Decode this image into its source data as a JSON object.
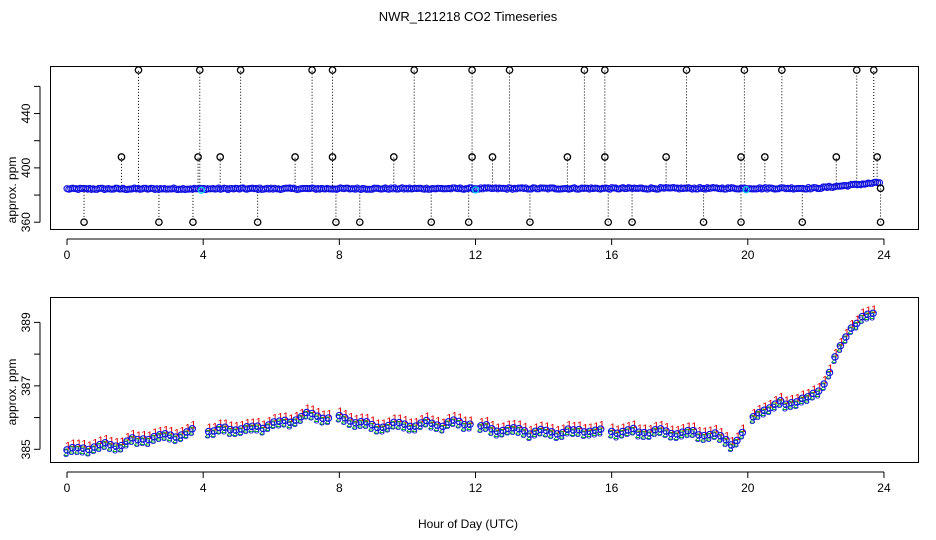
{
  "chart_data": [
    {
      "type": "scatter",
      "panel": "top",
      "title": "NWR_121218  CO2 Timeseries",
      "xlabel": "",
      "ylabel": "approx. ppm",
      "xlim": [
        -0.5,
        25
      ],
      "ylim": [
        355,
        475
      ],
      "xticks": [
        "0",
        "4",
        "8",
        "12",
        "16",
        "20",
        "24"
      ],
      "yticks": [
        "360",
        "400",
        "440"
      ],
      "baseline": {
        "start_hour": 0,
        "start_value": 384.5,
        "rise_hour": 22,
        "end_value": 389.5
      },
      "spikes_high": [
        {
          "x": 1.6,
          "y": 408
        },
        {
          "x": 2.1,
          "y": 472
        },
        {
          "x": 3.9,
          "y": 472
        },
        {
          "x": 3.85,
          "y": 408
        },
        {
          "x": 4.5,
          "y": 408
        },
        {
          "x": 5.1,
          "y": 472
        },
        {
          "x": 6.7,
          "y": 408
        },
        {
          "x": 7.2,
          "y": 472
        },
        {
          "x": 7.8,
          "y": 472
        },
        {
          "x": 7.8,
          "y": 408
        },
        {
          "x": 9.6,
          "y": 408
        },
        {
          "x": 10.2,
          "y": 472
        },
        {
          "x": 11.9,
          "y": 408
        },
        {
          "x": 11.9,
          "y": 472
        },
        {
          "x": 12.5,
          "y": 408
        },
        {
          "x": 13.0,
          "y": 472
        },
        {
          "x": 14.7,
          "y": 408
        },
        {
          "x": 15.2,
          "y": 472
        },
        {
          "x": 15.8,
          "y": 472
        },
        {
          "x": 15.8,
          "y": 408
        },
        {
          "x": 17.6,
          "y": 408
        },
        {
          "x": 18.2,
          "y": 472
        },
        {
          "x": 19.8,
          "y": 408
        },
        {
          "x": 19.9,
          "y": 472
        },
        {
          "x": 20.5,
          "y": 408
        },
        {
          "x": 21.0,
          "y": 472
        },
        {
          "x": 22.6,
          "y": 408
        },
        {
          "x": 23.2,
          "y": 472
        },
        {
          "x": 23.7,
          "y": 472
        },
        {
          "x": 23.8,
          "y": 408
        }
      ],
      "spikes_low": [
        {
          "x": 0.5,
          "y": 360
        },
        {
          "x": 2.7,
          "y": 360
        },
        {
          "x": 3.7,
          "y": 360
        },
        {
          "x": 5.6,
          "y": 360
        },
        {
          "x": 7.9,
          "y": 360
        },
        {
          "x": 8.6,
          "y": 360
        },
        {
          "x": 10.7,
          "y": 360
        },
        {
          "x": 11.8,
          "y": 360
        },
        {
          "x": 13.6,
          "y": 360
        },
        {
          "x": 15.9,
          "y": 360
        },
        {
          "x": 16.6,
          "y": 360
        },
        {
          "x": 18.7,
          "y": 360
        },
        {
          "x": 19.8,
          "y": 360
        },
        {
          "x": 21.6,
          "y": 360
        },
        {
          "x": 23.9,
          "y": 360
        },
        {
          "x": 23.9,
          "y": 385
        }
      ],
      "series_colors": {
        "markers": "#1010e0",
        "highlight": "#00c8e8",
        "spike_markers": "#000000",
        "spike_lines": "#000000"
      }
    },
    {
      "type": "scatter",
      "panel": "bottom",
      "title": "",
      "xlabel": "Hour of Day (UTC)",
      "ylabel": "approx. ppm",
      "xlim": [
        -0.5,
        25
      ],
      "ylim": [
        384.6,
        389.8
      ],
      "xticks": [
        "0",
        "4",
        "8",
        "12",
        "16",
        "20",
        "24"
      ],
      "yticks": [
        "385",
        "387",
        "389"
      ],
      "gaps": [
        [
          3.8,
          4.1
        ],
        [
          7.75,
          7.95
        ],
        [
          11.95,
          12.05
        ],
        [
          15.75,
          16.0
        ],
        [
          19.9,
          20.1
        ]
      ],
      "profile": [
        {
          "x": 0.0,
          "y": 385.0
        },
        {
          "x": 1.5,
          "y": 385.15
        },
        {
          "x": 2.5,
          "y": 385.4
        },
        {
          "x": 3.7,
          "y": 385.55
        },
        {
          "x": 4.2,
          "y": 385.6
        },
        {
          "x": 5.5,
          "y": 385.7
        },
        {
          "x": 6.5,
          "y": 385.9
        },
        {
          "x": 7.0,
          "y": 386.1
        },
        {
          "x": 7.7,
          "y": 386.0
        },
        {
          "x": 8.2,
          "y": 386.0
        },
        {
          "x": 9.0,
          "y": 385.75
        },
        {
          "x": 10.5,
          "y": 385.8
        },
        {
          "x": 11.9,
          "y": 385.85
        },
        {
          "x": 12.1,
          "y": 385.7
        },
        {
          "x": 14.0,
          "y": 385.55
        },
        {
          "x": 15.7,
          "y": 385.6
        },
        {
          "x": 16.1,
          "y": 385.6
        },
        {
          "x": 18.0,
          "y": 385.55
        },
        {
          "x": 19.0,
          "y": 385.45
        },
        {
          "x": 19.6,
          "y": 385.2
        },
        {
          "x": 20.3,
          "y": 386.2
        },
        {
          "x": 21.0,
          "y": 386.45
        },
        {
          "x": 21.8,
          "y": 386.6
        },
        {
          "x": 22.2,
          "y": 387.0
        },
        {
          "x": 22.6,
          "y": 387.9
        },
        {
          "x": 23.0,
          "y": 388.9
        },
        {
          "x": 23.7,
          "y": 389.3
        }
      ],
      "series": [
        {
          "name": "1",
          "symbol": "1",
          "color": "#e00000",
          "offset": 0.14
        },
        {
          "name": "2",
          "symbol": "2",
          "color": "#00b000",
          "offset": -0.06
        },
        {
          "name": "3",
          "symbol": "3",
          "color": "#1010e0",
          "offset": -0.1
        },
        {
          "name": "o",
          "symbol": "o",
          "color": "#1010e0",
          "offset": 0.0
        }
      ]
    }
  ]
}
